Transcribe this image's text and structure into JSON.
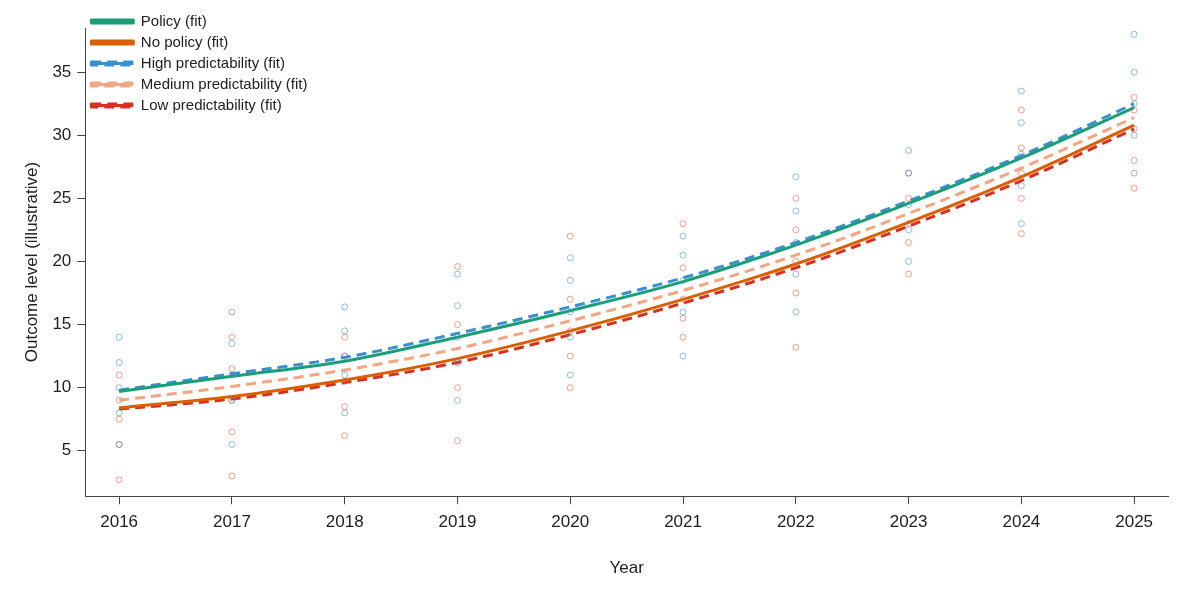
{
  "chart_data": {
    "type": "line",
    "xlabel": "Year",
    "ylabel": "Outcome level (illustrative)",
    "x": [
      2016,
      2017,
      2018,
      2019,
      2020,
      2021,
      2022,
      2023,
      2024,
      2025
    ],
    "xlim": [
      2015.7,
      2025.3
    ],
    "xticks": [
      2016,
      2017,
      2018,
      2019,
      2020,
      2021,
      2022,
      2023,
      2024,
      2025
    ],
    "ylim": [
      1.4,
      38.5
    ],
    "yticks": [
      5,
      10,
      15,
      20,
      25,
      30,
      35
    ],
    "grid": false,
    "legend": "top left",
    "series": [
      {
        "type": "scatter",
        "marker": "circle",
        "color": "#4a8fc2",
        "x": [
          2016,
          2016,
          2016,
          2016,
          2016,
          2017,
          2017,
          2017,
          2017,
          2017,
          2018,
          2018,
          2018,
          2018,
          2018,
          2019,
          2019,
          2019,
          2019,
          2019,
          2020,
          2020,
          2020,
          2020,
          2020,
          2021,
          2021,
          2021,
          2021,
          2021,
          2022,
          2022,
          2022,
          2022,
          2022,
          2023,
          2023,
          2023,
          2023,
          2023,
          2024,
          2024,
          2024,
          2024,
          2024,
          2025,
          2025,
          2025,
          2025,
          2025
        ],
        "values": [
          5.5,
          8,
          10,
          12,
          14,
          5.5,
          9,
          11,
          13.5,
          16,
          8,
          11,
          12.5,
          14.5,
          16.4,
          9,
          12,
          14,
          16.5,
          19,
          11,
          14,
          16,
          18.5,
          20.3,
          12.5,
          16,
          18.5,
          20.5,
          22,
          16,
          19,
          21.5,
          24,
          26.7,
          20,
          22.5,
          24.5,
          27,
          28.8,
          23,
          26,
          28.5,
          31,
          33.5,
          27,
          30,
          32.5,
          35,
          38
        ]
      },
      {
        "type": "scatter",
        "marker": "circle",
        "color": "#e0604a",
        "x": [
          2016,
          2016,
          2016,
          2016,
          2016,
          2017,
          2017,
          2017,
          2017,
          2017,
          2018,
          2018,
          2018,
          2018,
          2018,
          2019,
          2019,
          2019,
          2019,
          2019,
          2020,
          2020,
          2020,
          2020,
          2020,
          2021,
          2021,
          2021,
          2021,
          2021,
          2022,
          2022,
          2022,
          2022,
          2022,
          2023,
          2023,
          2023,
          2023,
          2023,
          2024,
          2024,
          2024,
          2024,
          2024,
          2025,
          2025,
          2025,
          2025,
          2025
        ],
        "values": [
          2.7,
          5.5,
          7.5,
          9,
          11,
          3,
          6.5,
          9,
          11.5,
          14,
          6.2,
          8.5,
          10.5,
          12.5,
          14,
          5.8,
          10,
          12,
          15,
          19.6,
          10,
          12.5,
          14.5,
          17,
          22,
          14,
          15.5,
          17,
          19.5,
          23,
          13.2,
          17.5,
          20,
          22.5,
          25,
          19,
          21.5,
          23,
          25,
          27,
          22.2,
          25,
          27,
          29,
          32,
          25.8,
          28,
          30.5,
          32,
          33
        ]
      },
      {
        "type": "line",
        "name": "Policy (fit)",
        "color": "#1b9e77",
        "line_style": "solid",
        "values": [
          9.7,
          10.9,
          12.1,
          14.0,
          16.1,
          18.4,
          21.3,
          24.6,
          28.2,
          32.2
        ]
      },
      {
        "type": "line",
        "name": "No policy (fit)",
        "color": "#d95f02",
        "line_style": "solid",
        "values": [
          8.4,
          9.3,
          10.6,
          12.3,
          14.5,
          17.0,
          19.8,
          23.1,
          26.7,
          30.8
        ]
      },
      {
        "type": "line",
        "name": "High predictability (fit)",
        "color": "#3a8fd0",
        "line_style": "dashed",
        "values": [
          9.8,
          11.1,
          12.4,
          14.3,
          16.4,
          18.7,
          21.5,
          24.8,
          28.4,
          32.5
        ]
      },
      {
        "type": "line",
        "name": "Medium predictability (fit)",
        "color": "#f4a582",
        "line_style": "dashed",
        "values": [
          9.0,
          10.1,
          11.4,
          13.1,
          15.3,
          17.7,
          20.5,
          23.8,
          27.4,
          31.4
        ]
      },
      {
        "type": "line",
        "name": "Low predictability (fit)",
        "color": "#d7301f",
        "line_style": "dashed",
        "values": [
          8.3,
          9.1,
          10.4,
          12.0,
          14.2,
          16.7,
          19.5,
          22.8,
          26.4,
          30.5
        ]
      }
    ]
  }
}
